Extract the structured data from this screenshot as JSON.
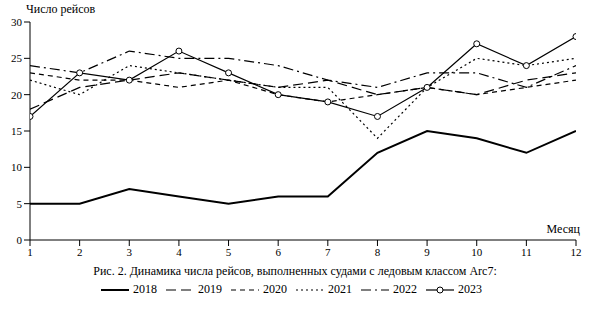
{
  "chart_data": {
    "type": "line",
    "title": "Рис. 2. Динамика числа рейсов, выполненных судами с ледовым классом Arc7:",
    "x_label": "Месяц",
    "y_label": "Число рейсов",
    "x": [
      1,
      2,
      3,
      4,
      5,
      6,
      7,
      8,
      9,
      10,
      11,
      12
    ],
    "xlim": [
      1,
      12
    ],
    "xticks": [
      1,
      2,
      3,
      4,
      5,
      6,
      7,
      8,
      9,
      10,
      11,
      12
    ],
    "ylim": [
      0,
      30
    ],
    "yticks": [
      0,
      5,
      10,
      15,
      20,
      25,
      30
    ],
    "grid": false,
    "series": [
      {
        "name": "2018",
        "color": "#000000",
        "line_style": "solid",
        "values": [
          5,
          5,
          7,
          6,
          5,
          6,
          6,
          12,
          15,
          14,
          12,
          15
        ]
      },
      {
        "name": "2019",
        "color": "#000000",
        "line_style": "long_dash",
        "values": [
          18,
          21,
          22,
          23,
          22,
          21,
          22,
          20,
          21,
          20,
          22,
          23
        ]
      },
      {
        "name": "2020",
        "color": "#000000",
        "line_style": "dashed",
        "values": [
          23,
          22,
          22,
          21,
          22,
          20,
          19,
          20,
          21,
          20,
          21,
          22
        ]
      },
      {
        "name": "2021",
        "color": "#000000",
        "line_style": "dotted",
        "values": [
          22,
          20,
          24,
          23,
          22,
          21,
          21,
          14,
          21,
          25,
          24,
          25
        ]
      },
      {
        "name": "2022",
        "color": "#000000",
        "line_style": "dashdot",
        "values": [
          24,
          23,
          26,
          25,
          25,
          24,
          22,
          21,
          23,
          23,
          21,
          24
        ]
      },
      {
        "name": "2023",
        "color": "#000000",
        "line_style": "solid",
        "marker": "circle",
        "values": [
          17,
          23,
          22,
          26,
          23,
          20,
          19,
          17,
          21,
          27,
          24,
          28
        ]
      }
    ]
  }
}
